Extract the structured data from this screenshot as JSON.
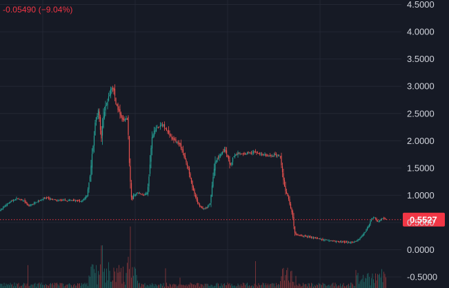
{
  "header": {
    "change_text": "-0.05490 (−9.04%)"
  },
  "colors": {
    "background": "#161a25",
    "grid": "#232734",
    "up": "#26a69a",
    "down": "#ef5350",
    "last_price_line": "#f23645",
    "axis_text": "#d1d4dc"
  },
  "chart_data": {
    "type": "candlestick",
    "title": "",
    "xlabel": "",
    "ylabel": "",
    "ylim": [
      -0.55,
      4.62
    ],
    "y_axis_position": "right",
    "grid": true,
    "y_ticks": [
      "4.5000",
      "4.0000",
      "3.5000",
      "3.0000",
      "2.5000",
      "2.0000",
      "1.5000",
      "1.0000",
      "0.5000",
      "0.0000",
      "-0.5000"
    ],
    "y_tick_values": [
      4.5,
      4.0,
      3.5,
      3.0,
      2.5,
      2.0,
      1.5,
      1.0,
      0.5,
      0.0,
      -0.5
    ],
    "last_price": 0.5527,
    "last_price_label": "0.5527",
    "change": -0.0549,
    "change_percent": -9.04,
    "price_path_approx": [
      [
        0,
        0.72
      ],
      [
        12,
        0.86
      ],
      [
        24,
        0.94
      ],
      [
        34,
        0.9
      ],
      [
        42,
        0.8
      ],
      [
        56,
        0.9
      ],
      [
        66,
        0.95
      ],
      [
        80,
        0.91
      ],
      [
        95,
        0.9
      ],
      [
        108,
        0.91
      ],
      [
        118,
        0.88
      ],
      [
        126,
        1.0
      ],
      [
        131,
        1.4
      ],
      [
        135,
        1.95
      ],
      [
        139,
        2.4
      ],
      [
        143,
        2.55
      ],
      [
        147,
        2.05
      ],
      [
        150,
        2.5
      ],
      [
        155,
        2.7
      ],
      [
        160,
        2.9
      ],
      [
        164,
        3.0
      ],
      [
        168,
        2.7
      ],
      [
        172,
        2.55
      ],
      [
        178,
        2.4
      ],
      [
        185,
        2.4
      ],
      [
        188,
        1.5
      ],
      [
        191,
        0.9
      ],
      [
        194,
        1.0
      ],
      [
        200,
        1.05
      ],
      [
        208,
        1.0
      ],
      [
        214,
        1.05
      ],
      [
        217,
        1.55
      ],
      [
        220,
        2.0
      ],
      [
        224,
        2.2
      ],
      [
        230,
        2.25
      ],
      [
        236,
        2.3
      ],
      [
        242,
        2.2
      ],
      [
        248,
        2.05
      ],
      [
        254,
        2.0
      ],
      [
        260,
        1.95
      ],
      [
        265,
        1.8
      ],
      [
        270,
        1.6
      ],
      [
        275,
        1.4
      ],
      [
        280,
        1.1
      ],
      [
        285,
        0.9
      ],
      [
        290,
        0.8
      ],
      [
        295,
        0.75
      ],
      [
        300,
        0.78
      ],
      [
        305,
        0.85
      ],
      [
        308,
        1.25
      ],
      [
        312,
        1.6
      ],
      [
        316,
        1.7
      ],
      [
        320,
        1.75
      ],
      [
        325,
        1.85
      ],
      [
        330,
        1.7
      ],
      [
        334,
        1.55
      ],
      [
        338,
        1.7
      ],
      [
        345,
        1.78
      ],
      [
        352,
        1.75
      ],
      [
        360,
        1.78
      ],
      [
        370,
        1.8
      ],
      [
        380,
        1.75
      ],
      [
        390,
        1.72
      ],
      [
        400,
        1.74
      ],
      [
        407,
        1.7
      ],
      [
        410,
        1.35
      ],
      [
        414,
        1.05
      ],
      [
        418,
        0.95
      ],
      [
        423,
        0.7
      ],
      [
        428,
        0.28
      ],
      [
        440,
        0.25
      ],
      [
        455,
        0.22
      ],
      [
        470,
        0.18
      ],
      [
        485,
        0.16
      ],
      [
        500,
        0.14
      ],
      [
        512,
        0.13
      ],
      [
        518,
        0.17
      ],
      [
        526,
        0.27
      ],
      [
        533,
        0.4
      ],
      [
        538,
        0.55
      ],
      [
        543,
        0.6
      ],
      [
        548,
        0.5
      ],
      [
        554,
        0.58
      ],
      [
        560,
        0.56
      ]
    ]
  }
}
